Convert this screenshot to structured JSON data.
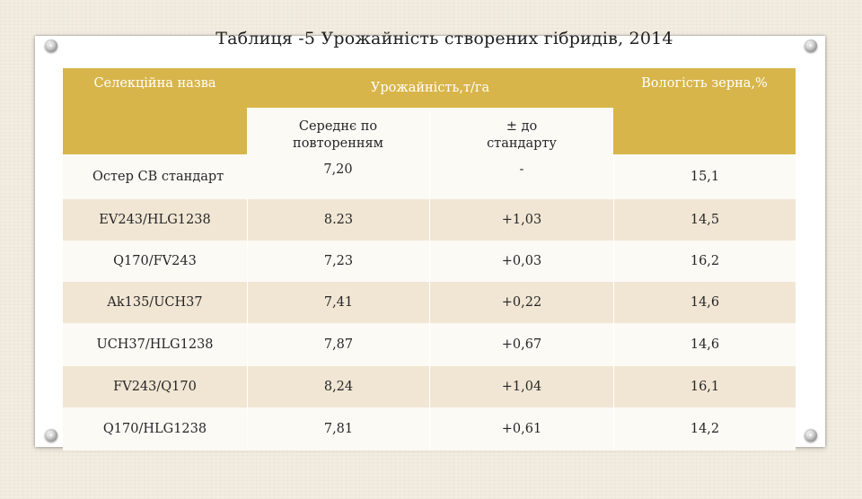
{
  "title": "Таблиця -5 Урожайність створених гібридів, 2014",
  "table": {
    "headers": {
      "name": "Селекційна назва",
      "yield": "Урожайність,т/га",
      "moisture": "Вологість зерна,%",
      "avg": "Середнє по повторенням",
      "diff": "± до стандарту"
    },
    "rows": [
      {
        "name": "Остер СВ стандарт",
        "avg": "7,20",
        "diff": "-",
        "moisture": "15,1"
      },
      {
        "name": "EV243/HLG1238",
        "avg": "8.23",
        "diff": "+1,03",
        "moisture": "14,5"
      },
      {
        "name": "Q170/FV243",
        "avg": "7,23",
        "diff": "+0,03",
        "moisture": "16,2"
      },
      {
        "name": "Ak135/UCH37",
        "avg": "7,41",
        "diff": "+0,22",
        "moisture": "14,6"
      },
      {
        "name": "UCH37/HLG1238",
        "avg": "7,87",
        "diff": "+0,67",
        "moisture": "14,6"
      },
      {
        "name": "FV243/Q170",
        "avg": "8,24",
        "diff": "+1,04",
        "moisture": "16,1"
      },
      {
        "name": "Q170/HLG1238",
        "avg": "7,81",
        "diff": "+0,61",
        "moisture": "14,2"
      }
    ]
  }
}
